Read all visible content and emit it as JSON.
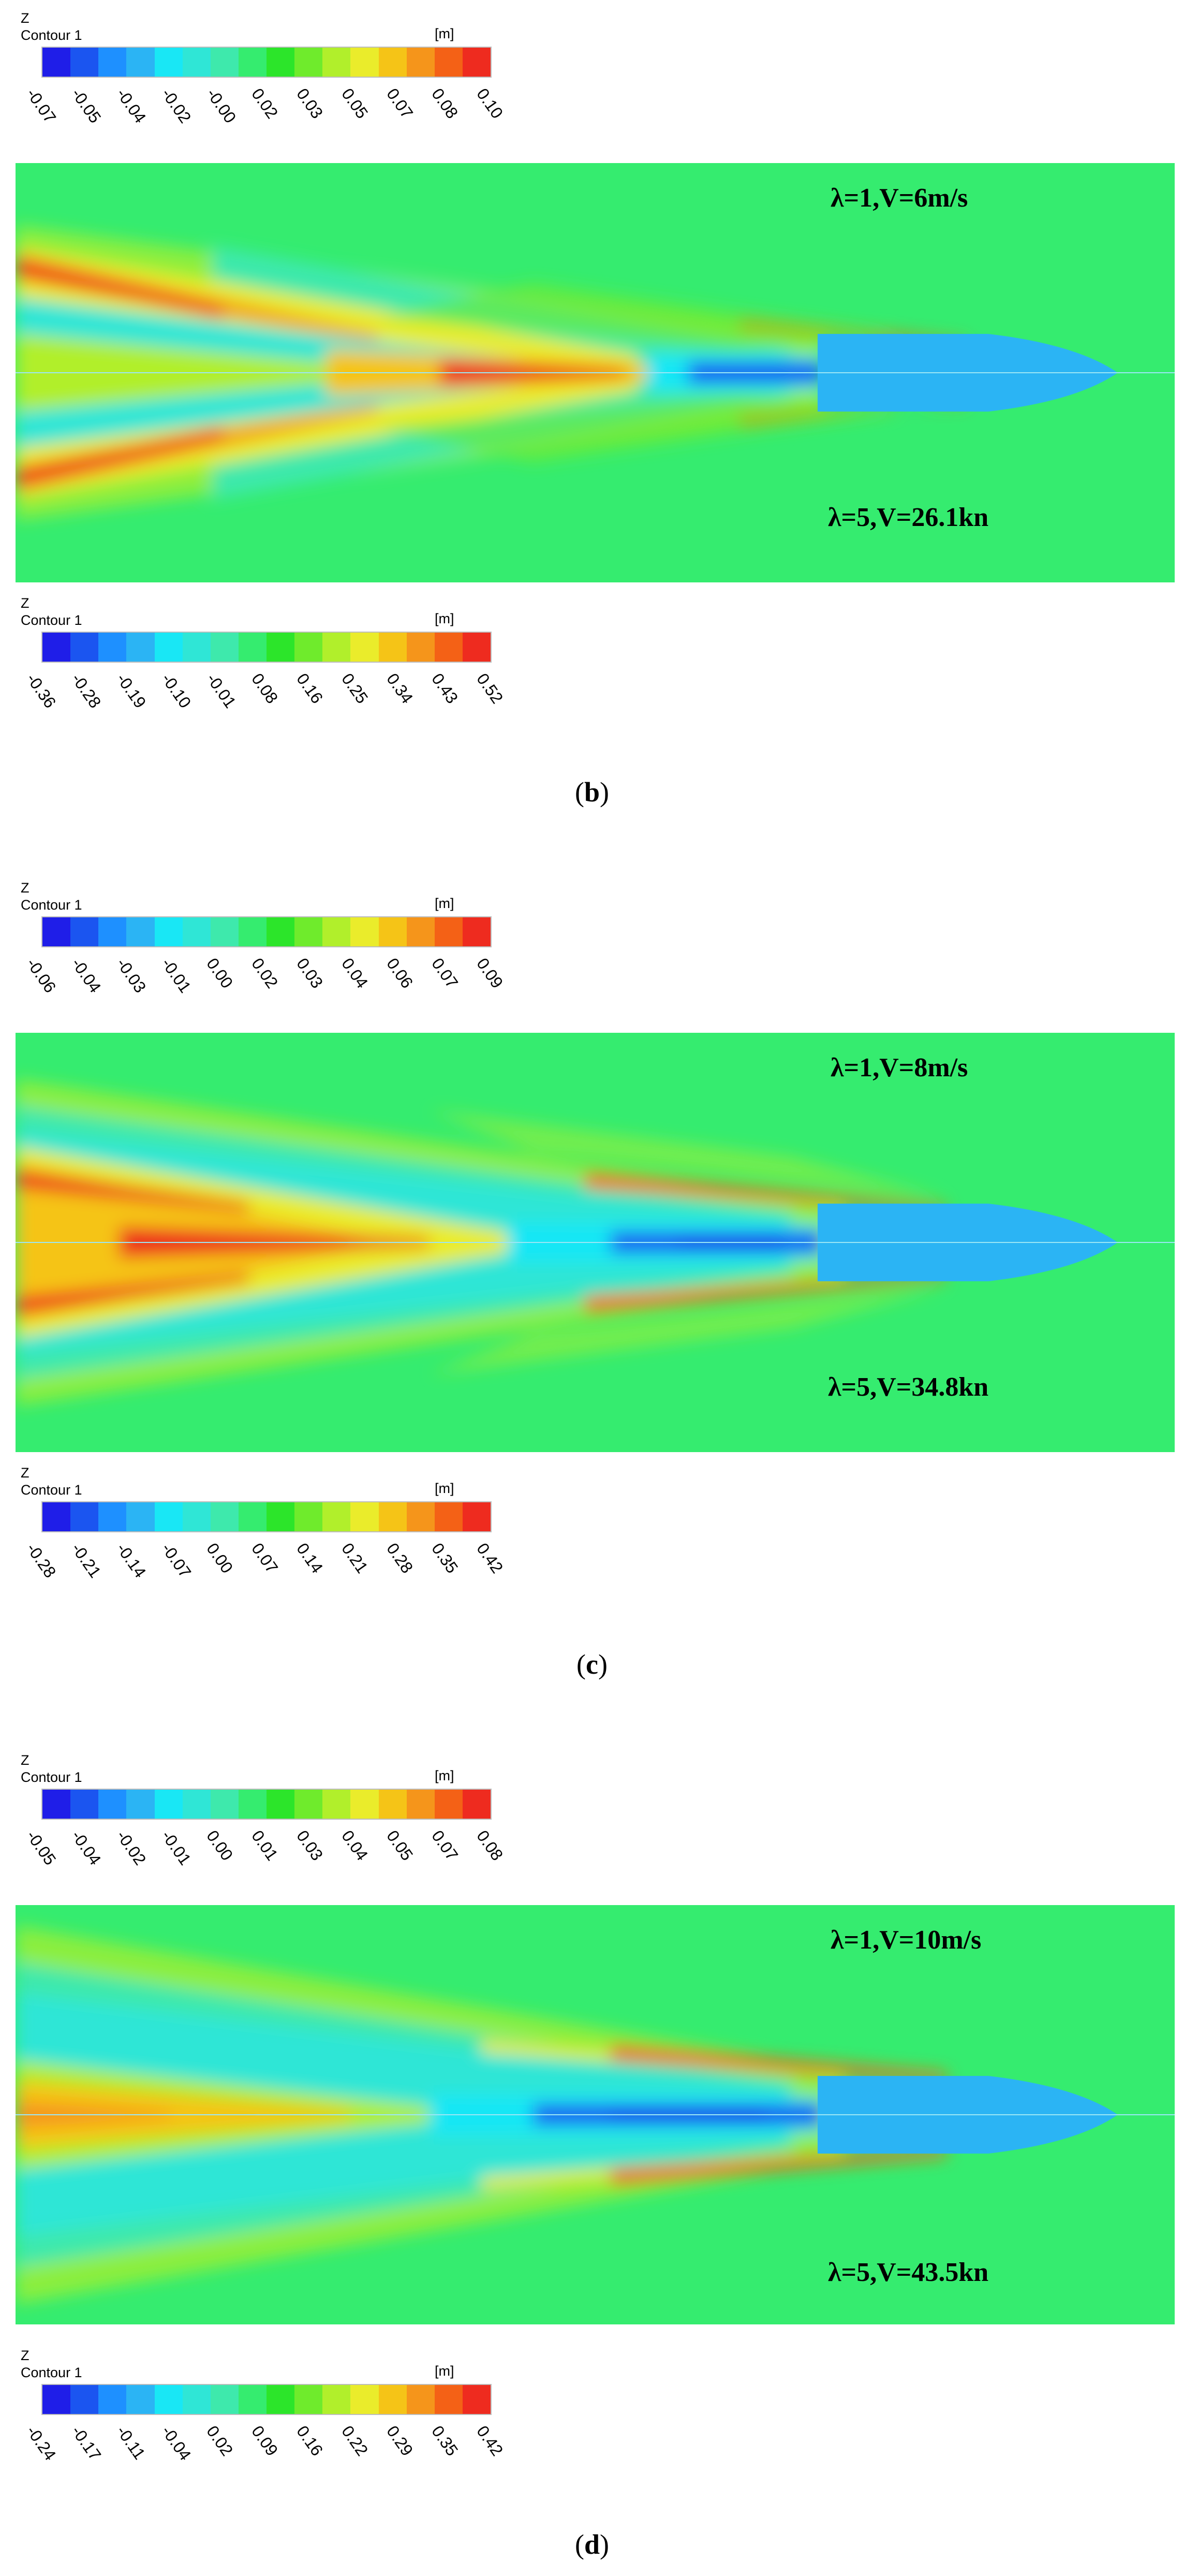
{
  "colormap": [
    "#1f1ee8",
    "#1b55f0",
    "#1e90ff",
    "#2bb4f4",
    "#19e7f5",
    "#2fe6d6",
    "#3ee9ac",
    "#35ec6f",
    "#2ce52a",
    "#6feb2c",
    "#b1ef2b",
    "#eaec2b",
    "#f5c417",
    "#f5951b",
    "#f46116",
    "#ee2b1f"
  ],
  "model_label": "λ=1",
  "prototype_label": "λ=5",
  "panels": [
    {
      "top_legend": {
        "axis": "Z",
        "title": "Contour 1",
        "unit": "[m]",
        "ticks": [
          "-0.07",
          "-0.05",
          "-0.04",
          "-0.02",
          "-0.00",
          "0.02",
          "0.03",
          "0.05",
          "0.07",
          "0.08",
          "0.10"
        ]
      },
      "model_speed": "V=6m/s",
      "prototype_speed": "V=26.1kn",
      "bottom_legend": {
        "axis": "Z",
        "title": "Contour 1",
        "unit": "[m]",
        "ticks": [
          "-0.36",
          "-0.28",
          "-0.19",
          "-0.10",
          "-0.01",
          "0.08",
          "0.16",
          "0.25",
          "0.34",
          "0.43",
          "0.52"
        ]
      },
      "caption_letter": "b"
    },
    {
      "top_legend": {
        "axis": "Z",
        "title": "Contour 1",
        "unit": "[m]",
        "ticks": [
          "-0.06",
          "-0.04",
          "-0.03",
          "-0.01",
          "0.00",
          "0.02",
          "0.03",
          "0.04",
          "0.06",
          "0.07",
          "0.09"
        ]
      },
      "model_speed": "V=8m/s",
      "prototype_speed": "V=34.8kn",
      "bottom_legend": {
        "axis": "Z",
        "title": "Contour 1",
        "unit": "[m]",
        "ticks": [
          "-0.28",
          "-0.21",
          "-0.14",
          "-0.07",
          "0.00",
          "0.07",
          "0.14",
          "0.21",
          "0.28",
          "0.35",
          "0.42"
        ]
      },
      "caption_letter": "c"
    },
    {
      "top_legend": {
        "axis": "Z",
        "title": "Contour 1",
        "unit": "[m]",
        "ticks": [
          "-0.05",
          "-0.04",
          "-0.02",
          "-0.01",
          "0.00",
          "0.01",
          "0.03",
          "0.04",
          "0.05",
          "0.07",
          "0.08"
        ]
      },
      "model_speed": "V=10m/s",
      "prototype_speed": "V=43.5kn",
      "bottom_legend": {
        "axis": "Z",
        "title": "Contour 1",
        "unit": "[m]",
        "ticks": [
          "-0.24",
          "-0.17",
          "-0.11",
          "-0.04",
          "0.02",
          "0.09",
          "0.16",
          "0.22",
          "0.29",
          "0.35",
          "0.42"
        ]
      },
      "caption_letter": "d"
    }
  ]
}
